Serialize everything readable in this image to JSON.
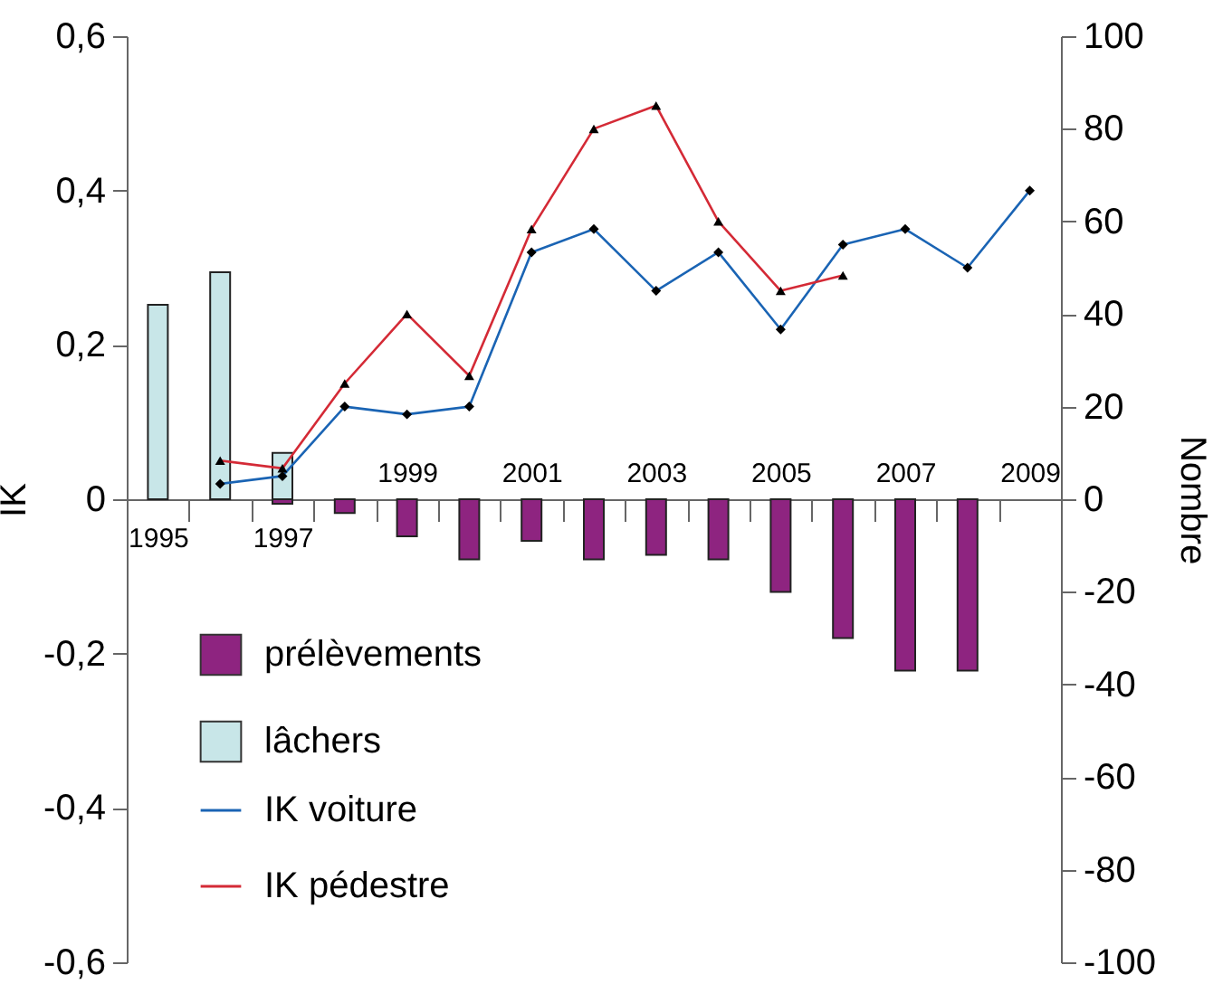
{
  "chart_data": {
    "type": "line",
    "categories": [
      "1995",
      null,
      "1997",
      null,
      "1999",
      null,
      "2001",
      null,
      "2003",
      null,
      "2005",
      null,
      "2007",
      null,
      "2009"
    ],
    "ylabel": "IK",
    "y2label": "Nombre",
    "ylim": [
      -0.6,
      0.6
    ],
    "yticks": [
      {
        "value": -0.6,
        "label": "-0,6"
      },
      {
        "value": -0.4,
        "label": "-0,4"
      },
      {
        "value": -0.2,
        "label": "-0,2"
      },
      0,
      {
        "value": 0.2,
        "label": "0,2"
      },
      {
        "value": 0.4,
        "label": "0,4"
      },
      {
        "value": 0.6,
        "label": "0,6"
      }
    ],
    "y2lim": [
      -100,
      100
    ],
    "y2ticks": [
      -100,
      -80,
      -60,
      -40,
      -20,
      0,
      20,
      40,
      60,
      80,
      100
    ],
    "grid": false,
    "legend": "bottom left",
    "series": [
      {
        "name": "prélèvements",
        "type": "bar",
        "axis": "y2",
        "color": "#8e2480",
        "values": [
          null,
          null,
          -1,
          -3,
          -8,
          -13,
          -9,
          -13,
          -12,
          -13,
          -20,
          -30,
          -37,
          -37,
          null
        ]
      },
      {
        "name": "lâchers",
        "type": "bar",
        "axis": "y2",
        "color": "#c8e6e8",
        "values": [
          42,
          49,
          10,
          null,
          null,
          null,
          null,
          null,
          null,
          null,
          null,
          null,
          null,
          null,
          null
        ]
      },
      {
        "name": "IK voiture",
        "axis": "y",
        "color": "#1a64b4",
        "marker": "diamond",
        "values": [
          null,
          0.02,
          0.03,
          0.12,
          0.11,
          0.12,
          0.32,
          0.35,
          0.27,
          0.32,
          0.22,
          0.33,
          0.35,
          0.3,
          0.4
        ]
      },
      {
        "name": "IK pédestre",
        "axis": "y",
        "color": "#d42a36",
        "marker": "triangle",
        "values": [
          null,
          0.05,
          0.04,
          0.15,
          0.24,
          0.16,
          0.35,
          0.48,
          0.51,
          0.36,
          0.27,
          0.29,
          null,
          null,
          null
        ]
      }
    ]
  }
}
